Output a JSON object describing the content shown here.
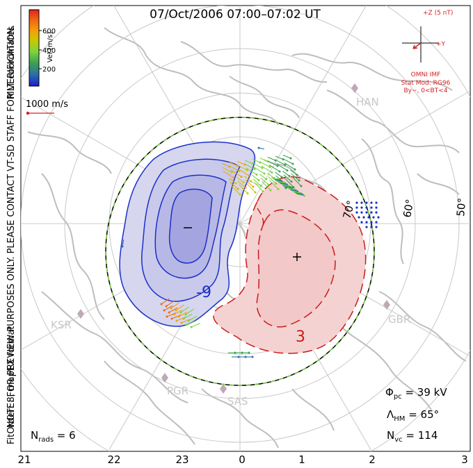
{
  "title": "07/Oct/2006 07:00–07:02 UT",
  "side_note": "NOTE: FOR PREVIEW PURPOSES ONLY. PLEASE CONTACT VT-SD STAFF FOR VERIFICATION.",
  "fit_order": "FitOrder: 8, mapEX format",
  "coordinates_label": "MLT coordinates",
  "velocity_scale": {
    "unit_label": "Vel [m/s]",
    "ticks": [
      "600",
      "400",
      "200"
    ],
    "colors": [
      "#e02020",
      "#f06a10",
      "#f5a00a",
      "#c8c800",
      "#7ed340",
      "#3aa050",
      "#2a6fa8",
      "#1a1ad0"
    ]
  },
  "reference_vector": "1000 m/s",
  "imf": {
    "z_label": "+Z (5 nT)",
    "y_label": "+Y",
    "source": "OMNI IMF",
    "model": "Stat Mod: RG96",
    "condition": "By−, 0<BT<4"
  },
  "stations": [
    "HAN",
    "KSR",
    "GBR",
    "PGR",
    "SAS"
  ],
  "latitude_labels": [
    "70°",
    "60°",
    "50°"
  ],
  "mlt_ticks": [
    "21",
    "22",
    "23",
    "0",
    "1",
    "2",
    "3"
  ],
  "contour_labels": [
    "-9",
    "3"
  ],
  "potential_markers": {
    "minimum": "−",
    "maximum": "+"
  },
  "stats": {
    "phi_pc_symbol": "Φ",
    "phi_pc_sub": "pc",
    "phi_pc_value": " = 39 kV",
    "lambda_symbol": "Λ",
    "lambda_sub": "HM",
    "lambda_value": " = 65°",
    "nvc_symbol": "N",
    "nvc_sub": "vc",
    "nvc_value": " = 114",
    "nrads_symbol": "N",
    "nrads_sub": "rads",
    "nrads_value": " = 6"
  },
  "colors": {
    "convection_negative": "#1a2fc8",
    "convection_positive": "#cc1a1a",
    "imf_arrow": "#d42020",
    "hmb_dash": "#7ed340",
    "land": "#bdbdbd",
    "grid": "#c8c8c8"
  }
}
